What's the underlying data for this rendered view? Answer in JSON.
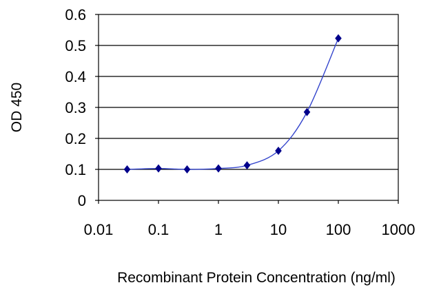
{
  "chart_data": {
    "type": "line",
    "title": "",
    "xlabel": "Recombinant Protein Concentration (ng/ml)",
    "ylabel": "OD 450",
    "x_scale": "log",
    "xlim": [
      0.01,
      1000
    ],
    "ylim": [
      0,
      0.6
    ],
    "x_ticks": [
      "0.01",
      "0.1",
      "1",
      "10",
      "100",
      "1000"
    ],
    "y_ticks": [
      "0",
      "0.1",
      "0.2",
      "0.3",
      "0.4",
      "0.5",
      "0.6"
    ],
    "grid": "horizontal",
    "series": [
      {
        "points": [
          {
            "x": 0.03,
            "y": 0.1
          },
          {
            "x": 0.1,
            "y": 0.103
          },
          {
            "x": 0.3,
            "y": 0.1
          },
          {
            "x": 1,
            "y": 0.103
          },
          {
            "x": 3,
            "y": 0.113
          },
          {
            "x": 10,
            "y": 0.16
          },
          {
            "x": 30,
            "y": 0.285
          },
          {
            "x": 100,
            "y": 0.523
          }
        ]
      }
    ],
    "colors": {
      "line": "#3344cc",
      "marker": "#00008b",
      "grid": "#000000",
      "frame": "#000000"
    }
  }
}
